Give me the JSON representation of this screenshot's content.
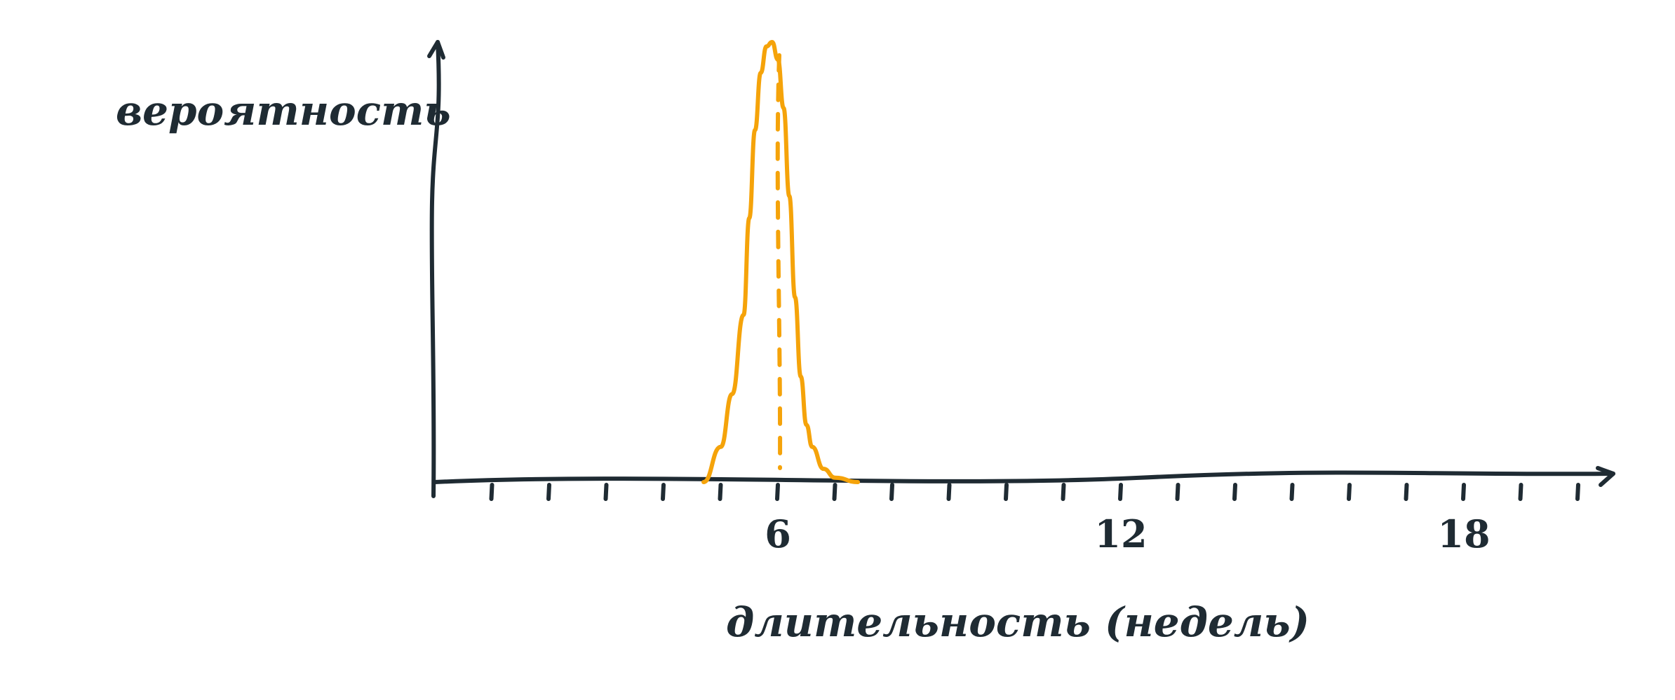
{
  "chart_data": {
    "type": "line",
    "xlabel": "длительность (недель)",
    "ylabel": "вероятность",
    "xlim": [
      0,
      21
    ],
    "x_ticks": [
      1,
      2,
      3,
      4,
      5,
      6,
      7,
      8,
      9,
      10,
      11,
      12,
      13,
      14,
      15,
      16,
      17,
      18,
      19,
      20
    ],
    "x_tick_labels": [
      {
        "x": 6,
        "label": "6"
      },
      {
        "x": 12,
        "label": "12"
      },
      {
        "x": 18,
        "label": "18"
      }
    ],
    "grid": false,
    "legend": "none",
    "series": [
      {
        "x": [
          4.7,
          5.0,
          5.2,
          5.4,
          5.5,
          5.6,
          5.7,
          5.8,
          5.9,
          6.0,
          6.1,
          6.2,
          6.3,
          6.4,
          6.5,
          6.6,
          6.8,
          7.0,
          7.4
        ],
        "y": [
          0.0,
          0.08,
          0.2,
          0.38,
          0.6,
          0.8,
          0.93,
          0.99,
          1.0,
          0.96,
          0.85,
          0.65,
          0.42,
          0.24,
          0.13,
          0.08,
          0.03,
          0.01,
          0.0
        ],
        "color": "#f5a30a"
      }
    ],
    "annotations": [
      {
        "type": "vertical-dashed-line",
        "x": 6,
        "color": "#f5a30a"
      }
    ],
    "colors": {
      "axis": "#1f2b33",
      "curve": "#f5a30a"
    }
  }
}
